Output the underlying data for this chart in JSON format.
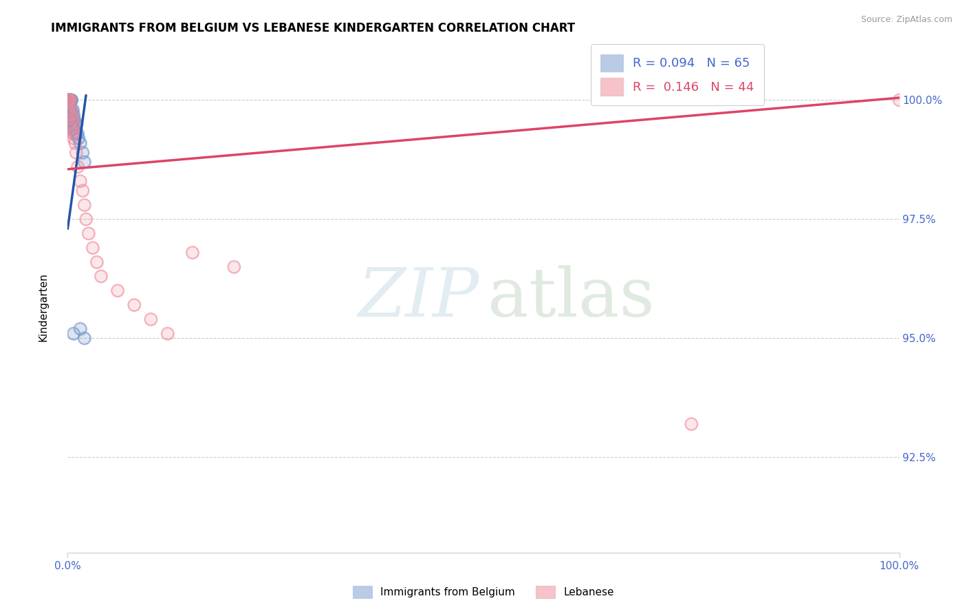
{
  "title": "IMMIGRANTS FROM BELGIUM VS LEBANESE KINDERGARTEN CORRELATION CHART",
  "source": "Source: ZipAtlas.com",
  "ylabel": "Kindergarten",
  "R1": 0.094,
  "N1": 65,
  "R2": 0.146,
  "N2": 44,
  "color_blue": "#7799CC",
  "color_pink": "#EE8899",
  "color_blue_line": "#2255AA",
  "color_pink_line": "#DD4466",
  "color_label": "#4466CC",
  "legend_label1": "Immigrants from Belgium",
  "legend_label2": "Lebanese",
  "xlim": [
    0.0,
    1.0
  ],
  "ylim": [
    90.5,
    101.2
  ],
  "yticks": [
    92.5,
    95.0,
    97.5,
    100.0
  ],
  "ytick_labels": [
    "92.5%",
    "95.0%",
    "97.5%",
    "100.0%"
  ],
  "xtick_labels": [
    "0.0%",
    "100.0%"
  ],
  "blue_x": [
    0.0,
    0.0,
    0.0,
    0.0,
    0.0,
    0.0,
    0.0,
    0.0,
    0.0,
    0.001,
    0.001,
    0.001,
    0.001,
    0.002,
    0.002,
    0.002,
    0.002,
    0.002,
    0.003,
    0.003,
    0.003,
    0.003,
    0.004,
    0.004,
    0.004,
    0.005,
    0.005,
    0.005,
    0.006,
    0.006,
    0.007,
    0.007,
    0.008,
    0.009,
    0.01,
    0.01,
    0.012,
    0.013,
    0.015,
    0.018,
    0.02,
    0.007,
    0.015,
    0.02
  ],
  "blue_y": [
    100.0,
    100.0,
    100.0,
    100.0,
    100.0,
    100.0,
    100.0,
    100.0,
    100.0,
    100.0,
    100.0,
    100.0,
    100.0,
    100.0,
    100.0,
    100.0,
    99.8,
    99.6,
    100.0,
    100.0,
    99.8,
    99.6,
    100.0,
    99.8,
    99.5,
    100.0,
    99.7,
    99.4,
    99.8,
    99.5,
    99.7,
    99.4,
    99.6,
    99.5,
    99.5,
    99.3,
    99.3,
    99.2,
    99.1,
    98.9,
    98.7,
    95.1,
    95.2,
    95.0
  ],
  "pink_x": [
    0.0,
    0.0,
    0.0,
    0.0,
    0.0,
    0.0,
    0.0,
    0.0,
    0.001,
    0.001,
    0.002,
    0.002,
    0.002,
    0.003,
    0.003,
    0.003,
    0.004,
    0.004,
    0.005,
    0.005,
    0.006,
    0.006,
    0.007,
    0.007,
    0.008,
    0.009,
    0.01,
    0.012,
    0.015,
    0.018,
    0.02,
    0.022,
    0.025,
    0.03,
    0.035,
    0.04,
    0.06,
    0.08,
    0.1,
    0.12,
    0.15,
    0.2,
    0.75,
    1.0
  ],
  "pink_y": [
    100.0,
    100.0,
    100.0,
    100.0,
    100.0,
    100.0,
    99.8,
    99.6,
    100.0,
    99.7,
    100.0,
    99.8,
    99.5,
    100.0,
    99.7,
    99.4,
    99.8,
    99.5,
    99.7,
    99.4,
    99.6,
    99.3,
    99.5,
    99.2,
    99.3,
    99.1,
    98.9,
    98.6,
    98.3,
    98.1,
    97.8,
    97.5,
    97.2,
    96.9,
    96.6,
    96.3,
    96.0,
    95.7,
    95.4,
    95.1,
    96.8,
    96.5,
    93.2,
    100.0
  ],
  "blue_trend_x": [
    0.0,
    0.022
  ],
  "blue_trend_y": [
    97.3,
    100.1
  ],
  "pink_trend_x": [
    0.0,
    1.0
  ],
  "pink_trend_y": [
    98.55,
    100.05
  ]
}
